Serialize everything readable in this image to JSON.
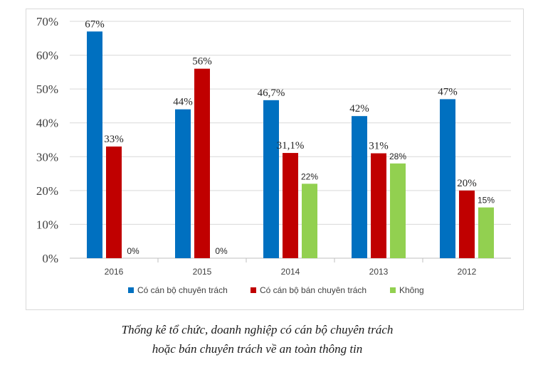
{
  "chart_data": {
    "type": "bar",
    "categories": [
      "2016",
      "2015",
      "2014",
      "2013",
      "2012"
    ],
    "series": [
      {
        "name": "Có cán bộ chuyên trách",
        "color": "#0070c0",
        "values": [
          67,
          44,
          46.7,
          42,
          47
        ],
        "labels": [
          "67%",
          "44%",
          "46,7%",
          "42%",
          "47%"
        ]
      },
      {
        "name": "Có cán bộ bán chuyên trách",
        "color": "#c00000",
        "values": [
          33,
          56,
          31.1,
          31,
          20
        ],
        "labels": [
          "33%",
          "56%",
          "31,1%",
          "31%",
          "20%"
        ]
      },
      {
        "name": "Không",
        "color": "#92d050",
        "values": [
          0,
          0,
          22,
          28,
          15
        ],
        "labels": [
          "0%",
          "0%",
          "22%",
          "28%",
          "15%"
        ]
      }
    ],
    "ylim": [
      0,
      70
    ],
    "yticks": [
      "0%",
      "10%",
      "20%",
      "30%",
      "40%",
      "50%",
      "60%",
      "70%"
    ],
    "grid": true,
    "legend_position": "bottom"
  },
  "caption": {
    "line1": "Thống kê tổ chức, doanh nghiệp có cán bộ chuyên trách",
    "line2": "hoặc bán chuyên trách về an toàn thông tin"
  }
}
